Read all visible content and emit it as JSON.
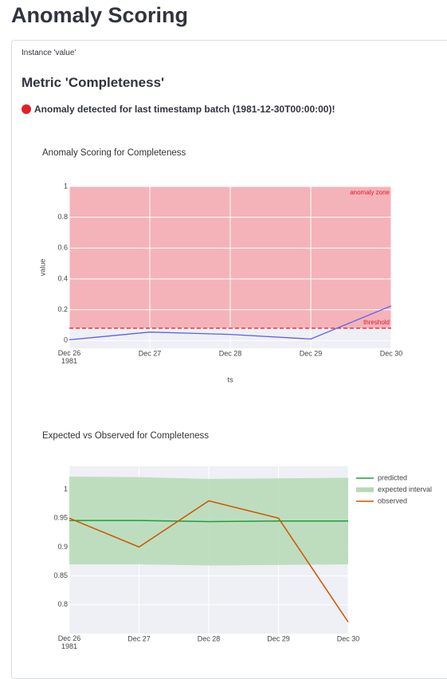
{
  "header": {
    "title": "Anomaly Scoring"
  },
  "instance": "Instance 'value'",
  "metric_heading": "Metric 'Completeness'",
  "alert": "Anomaly detected for last timestamp batch (1981-12-30T00:00:00)!",
  "chart_data": [
    {
      "type": "line",
      "title": "Anomaly Scoring for Completeness",
      "x": [
        "1981-12-26",
        "1981-12-27",
        "1981-12-28",
        "1981-12-29",
        "1981-12-30"
      ],
      "values": [
        0.005,
        0.055,
        0.04,
        0.01,
        0.225
      ],
      "color": "#5b5ff0",
      "xlabel": "ts",
      "ylabel": "value",
      "xlim": [
        "1981-12-26",
        "1981-12-30"
      ],
      "xticks": [
        {
          "value": "1981-12-26",
          "label": "Dec 26\n1981"
        },
        {
          "value": "1981-12-27",
          "label": "Dec 27"
        },
        {
          "value": "1981-12-28",
          "label": "Dec 28"
        },
        {
          "value": "1981-12-29",
          "label": "Dec 29"
        },
        {
          "value": "1981-12-30",
          "label": "Dec 30"
        }
      ],
      "ylim": [
        -0.05,
        1
      ],
      "yticks": [
        0,
        0.2,
        0.4,
        0.6,
        0.8,
        1
      ],
      "grid": true,
      "threshold": {
        "value": 0.08,
        "label": "threshold",
        "color": "#e8182a"
      },
      "anomaly_zone": {
        "label": "anomaly zone",
        "color": "#f4b3b8"
      }
    },
    {
      "type": "band-line",
      "title": "Expected vs Observed for Completeness",
      "x": [
        "1981-12-26",
        "1981-12-27",
        "1981-12-28",
        "1981-12-29",
        "1981-12-30"
      ],
      "series": [
        {
          "name": "predicted",
          "color": "#1f9e3a",
          "values": [
            0.946,
            0.946,
            0.944,
            0.945,
            0.945
          ]
        },
        {
          "name": "expected interval",
          "color": "#b5d9b5",
          "lower": [
            0.87,
            0.87,
            0.868,
            0.869,
            0.87
          ],
          "upper": [
            1.022,
            1.021,
            1.018,
            1.019,
            1.02
          ]
        },
        {
          "name": "observed",
          "color": "#cc5500",
          "values": [
            0.95,
            0.9,
            0.98,
            0.95,
            0.77
          ]
        }
      ],
      "xlim": [
        "1981-12-26",
        "1981-12-30"
      ],
      "xticks": [
        {
          "value": "1981-12-26",
          "label": "Dec 26\n1981"
        },
        {
          "value": "1981-12-27",
          "label": "Dec 27"
        },
        {
          "value": "1981-12-28",
          "label": "Dec 28"
        },
        {
          "value": "1981-12-29",
          "label": "Dec 29"
        },
        {
          "value": "1981-12-30",
          "label": "Dec 30"
        }
      ],
      "ylim": [
        0.75,
        1.04
      ],
      "yticks": [
        0.8,
        0.85,
        0.9,
        0.95,
        1
      ],
      "grid": true,
      "legend": "right"
    }
  ]
}
